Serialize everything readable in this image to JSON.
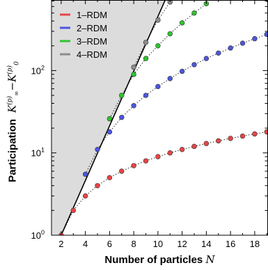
{
  "chart_data": {
    "type": "scatter",
    "xlabel": "Number of particles",
    "xlabel_symbol": "N",
    "ylabel": "Participation",
    "ylabel_symbol": "K∞(p) − K0(p)",
    "xlim": [
      1.2,
      19.1
    ],
    "ylim": [
      1,
      720
    ],
    "yscale": "log",
    "x_ticks": [
      2,
      4,
      6,
      8,
      10,
      12,
      14,
      16,
      18
    ],
    "y_ticks": [
      {
        "value": 1,
        "base": "10",
        "exp": "0"
      },
      {
        "value": 10,
        "base": "10",
        "exp": "1"
      },
      {
        "value": 100,
        "base": "10",
        "exp": "2"
      }
    ],
    "legend": {
      "position": "top-left"
    },
    "shaded_region": {
      "boundary": "2^(N-1)",
      "color": "#dcdcdc"
    },
    "boundary_line": {
      "x": [
        2,
        10.6
      ],
      "y": [
        1,
        720
      ]
    },
    "series": [
      {
        "name": "1–RDM",
        "color": "#e84545",
        "x": [
          2,
          3,
          4,
          5,
          6,
          7,
          8,
          9,
          10,
          11,
          12,
          13,
          14,
          15,
          16,
          17,
          18,
          19
        ],
        "y": [
          1.0,
          2.0,
          3.0,
          4.0,
          5.0,
          6.0,
          7.0,
          8.0,
          9.0,
          10.0,
          11.0,
          12.0,
          13.0,
          14.0,
          15.0,
          16.0,
          17.0,
          18.0
        ]
      },
      {
        "name": "2–RDM",
        "color": "#4c56e0",
        "x": [
          4,
          5,
          6,
          7,
          8,
          9,
          10,
          11,
          12,
          13,
          14,
          15,
          16,
          17,
          18,
          19
        ],
        "y": [
          5.5,
          11.0,
          18.0,
          27.0,
          37.5,
          50.0,
          64.0,
          80.0,
          98.0,
          118.0,
          140.0,
          163.0,
          188.0,
          215.0,
          244.0,
          275.0
        ]
      },
      {
        "name": "3–RDM",
        "color": "#2dc52d",
        "x": [
          6,
          7,
          8,
          9,
          10,
          11,
          12,
          13,
          14
        ],
        "y": [
          26.0,
          50.0,
          90.0,
          140.0,
          200.0,
          280.0,
          380.0,
          500.0,
          650.0
        ]
      },
      {
        "name": "4–RDM",
        "color": "#8c8c8c",
        "x": [
          8,
          9,
          10,
          11
        ],
        "y": [
          110.0,
          220.0,
          410.0,
          680.0
        ]
      }
    ]
  }
}
